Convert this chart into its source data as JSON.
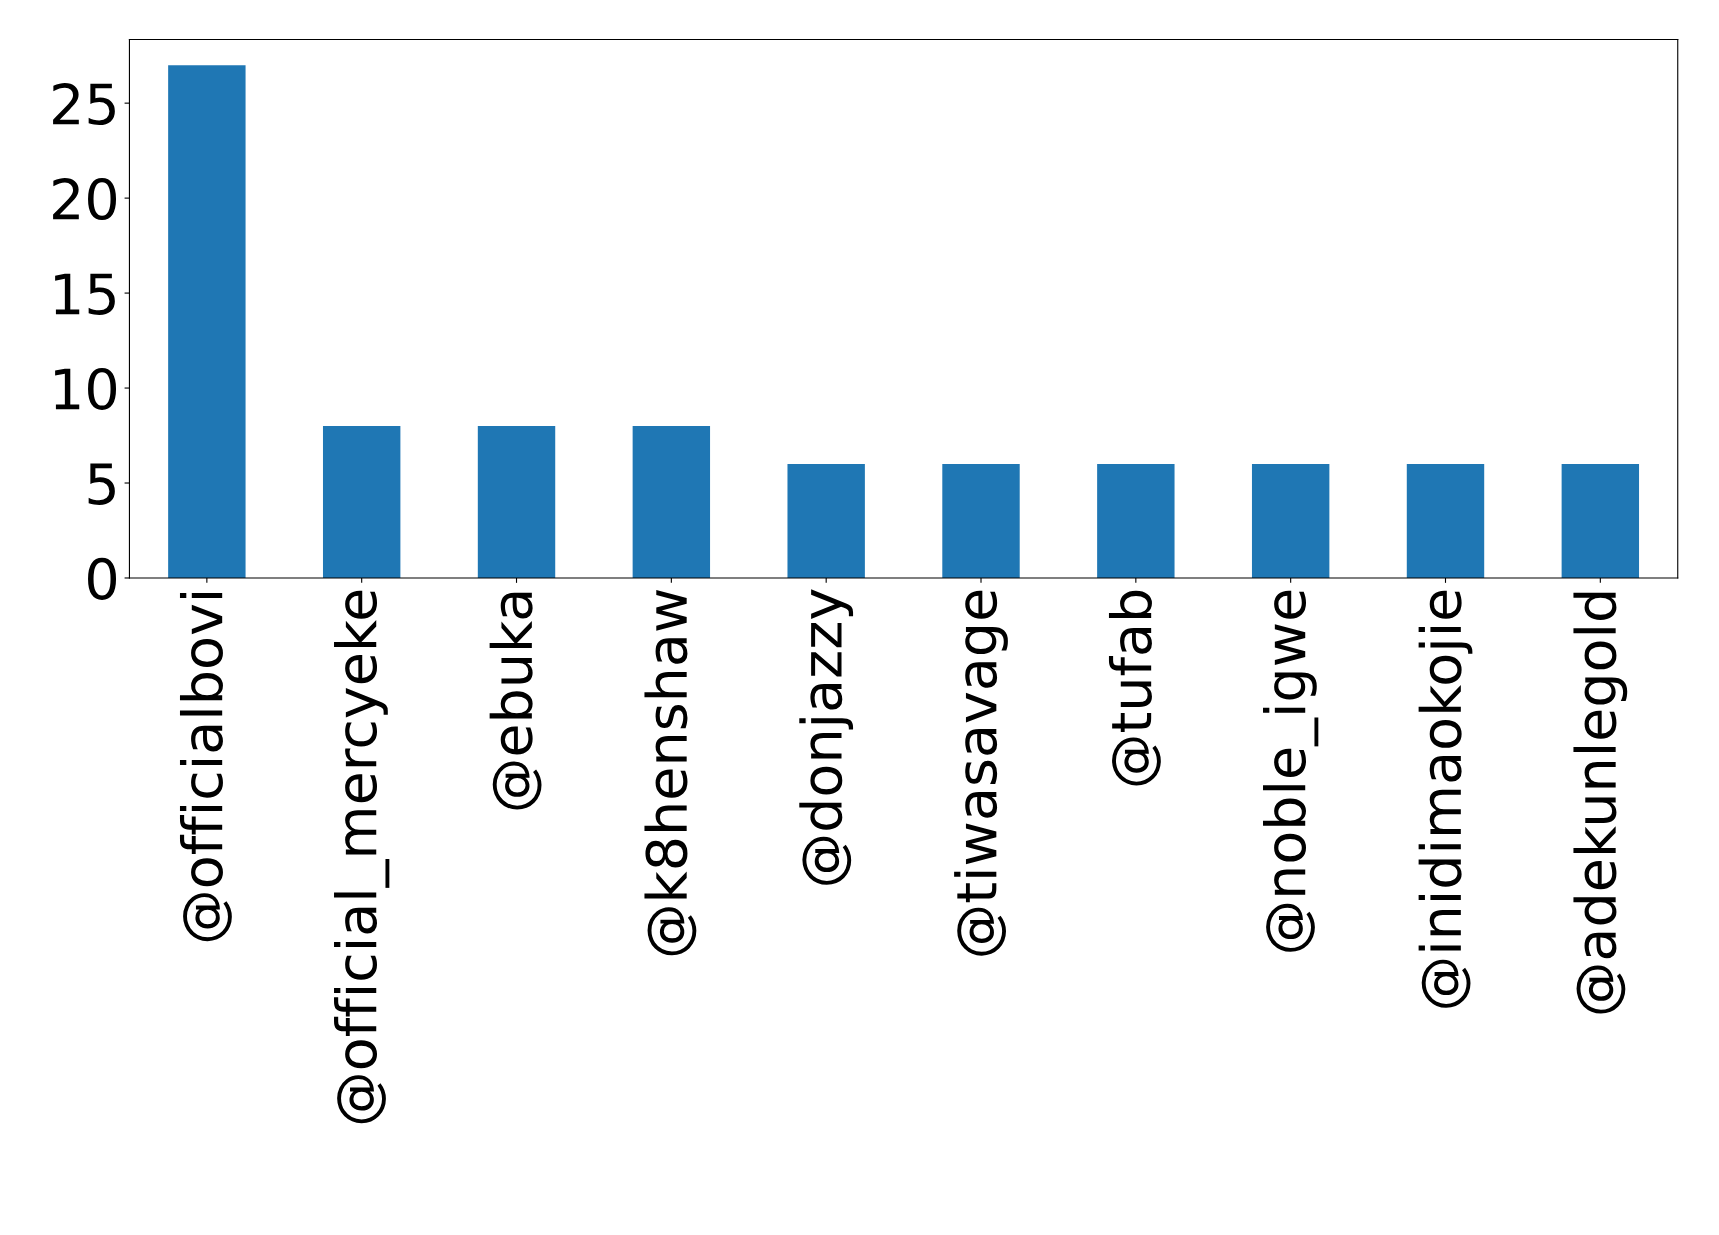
{
  "chart_data": {
    "type": "bar",
    "categories": [
      "@officialbovi",
      "@official_mercyeke",
      "@ebuka",
      "@k8henshaw",
      "@donjazzy",
      "@tiwasavage",
      "@tufab",
      "@noble_igwe",
      "@inidimaokojie",
      "@adekunlegold"
    ],
    "values": [
      27,
      8,
      8,
      8,
      6,
      6,
      6,
      6,
      6,
      6
    ],
    "color": "#1f77b4",
    "ylim": [
      0,
      28.35
    ],
    "yticks": [
      0,
      5,
      10,
      15,
      20,
      25
    ],
    "grid": false,
    "legend": false
  }
}
